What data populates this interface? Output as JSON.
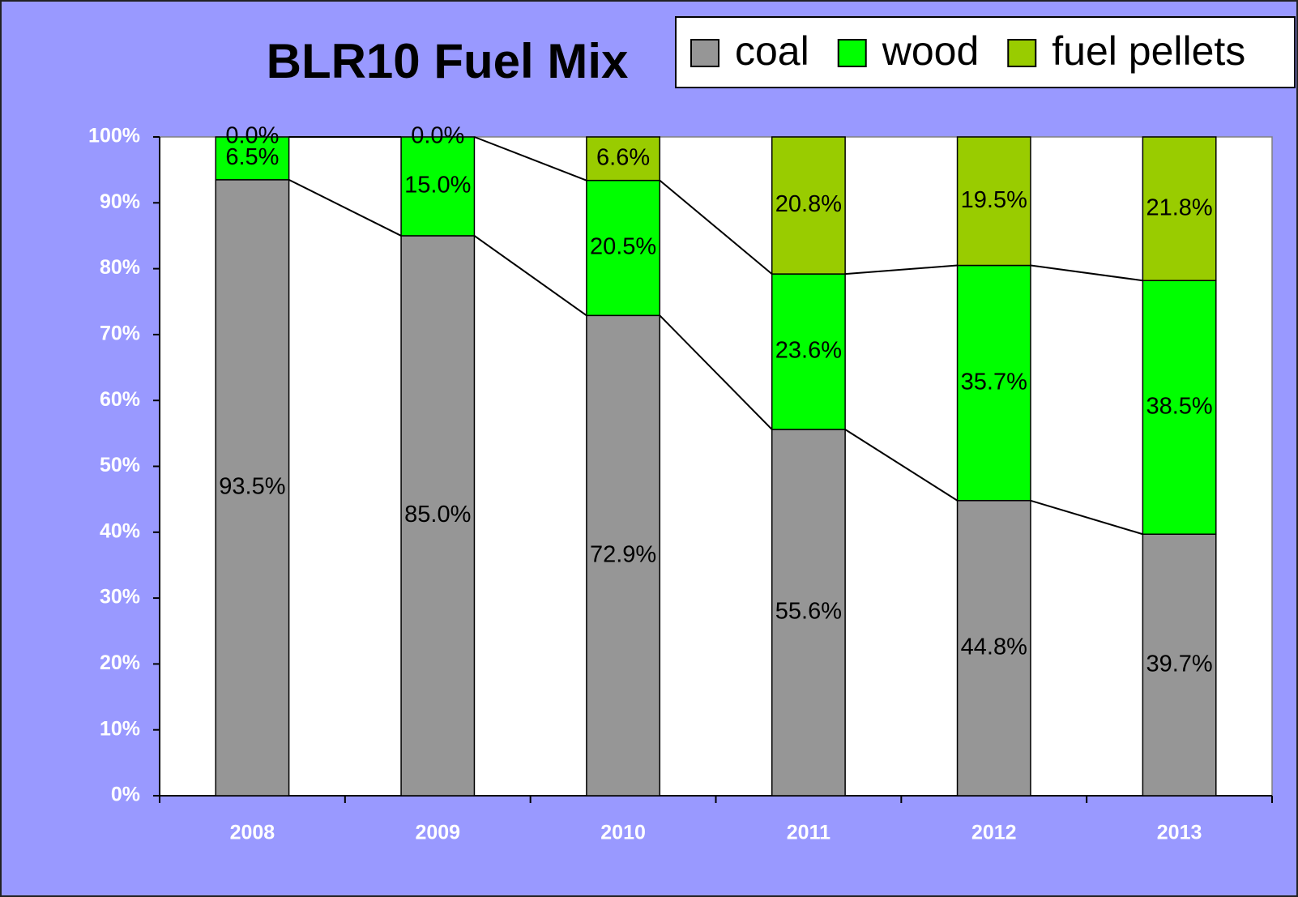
{
  "chart_data": {
    "type": "stacked_bar",
    "title": "BLR10 Fuel Mix",
    "categories": [
      "2008",
      "2009",
      "2010",
      "2011",
      "2012",
      "2013"
    ],
    "series": [
      {
        "name": "coal",
        "color": "#969696",
        "values": [
          93.5,
          85.0,
          72.9,
          55.6,
          44.8,
          39.7
        ],
        "value_labels": [
          "93.5%",
          "85.0%",
          "72.9%",
          "55.6%",
          "44.8%",
          "39.7%"
        ]
      },
      {
        "name": "wood",
        "color": "#00ff00",
        "values": [
          6.5,
          15.0,
          20.5,
          23.6,
          35.7,
          38.5
        ],
        "value_labels": [
          "6.5%",
          "15.0%",
          "20.5%",
          "23.6%",
          "35.7%",
          "38.5%"
        ]
      },
      {
        "name": "fuel pellets",
        "color": "#99cc00",
        "values": [
          0.0,
          0.0,
          6.6,
          20.8,
          19.5,
          21.8
        ],
        "value_labels": [
          "0.0%",
          "0.0%",
          "6.6%",
          "20.8%",
          "19.5%",
          "21.8%"
        ]
      }
    ],
    "ylim": [
      0,
      100
    ],
    "yticks": [
      {
        "value": 0,
        "label": "0%"
      },
      {
        "value": 10,
        "label": "10%"
      },
      {
        "value": 20,
        "label": "20%"
      },
      {
        "value": 30,
        "label": "30%"
      },
      {
        "value": 40,
        "label": "40%"
      },
      {
        "value": 50,
        "label": "50%"
      },
      {
        "value": 60,
        "label": "60%"
      },
      {
        "value": 70,
        "label": "70%"
      },
      {
        "value": 80,
        "label": "80%"
      },
      {
        "value": 90,
        "label": "90%"
      },
      {
        "value": 100,
        "label": "100%"
      }
    ]
  }
}
